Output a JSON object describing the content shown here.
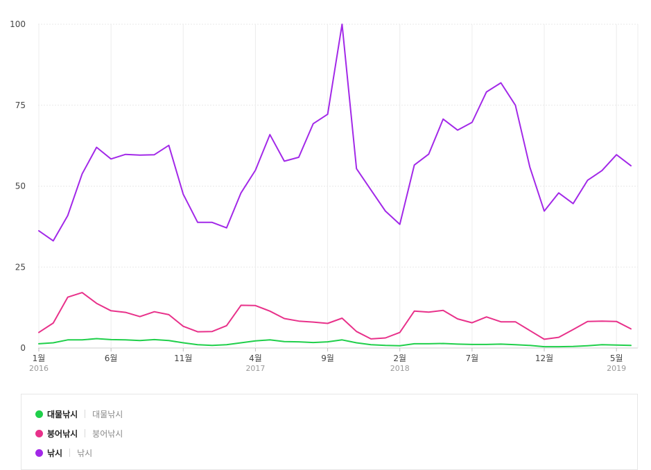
{
  "chart_data": {
    "type": "line",
    "ylim": [
      0,
      100
    ],
    "yticks": [
      "100",
      "75",
      "50",
      "25",
      "0"
    ],
    "ytick_values": [
      100,
      75,
      50,
      25,
      0
    ],
    "grid": true,
    "x_start": "2016-01",
    "x_end": "2019-06",
    "x_ticks": [
      {
        "month": "2016-01",
        "label": "1월",
        "year": "2016"
      },
      {
        "month": "2016-06",
        "label": "6월",
        "year": ""
      },
      {
        "month": "2016-11",
        "label": "11월",
        "year": ""
      },
      {
        "month": "2017-04",
        "label": "4월",
        "year": "2017"
      },
      {
        "month": "2017-09",
        "label": "9월",
        "year": ""
      },
      {
        "month": "2018-02",
        "label": "2월",
        "year": "2018"
      },
      {
        "month": "2018-07",
        "label": "7월",
        "year": ""
      },
      {
        "month": "2018-12",
        "label": "12월",
        "year": ""
      },
      {
        "month": "2019-05",
        "label": "5월",
        "year": "2019"
      }
    ],
    "series": [
      {
        "name": "대물낚시",
        "color": "#1fcf4a",
        "values": [
          1.3,
          1.6,
          2.5,
          2.5,
          2.9,
          2.6,
          2.5,
          2.3,
          2.6,
          2.3,
          1.6,
          1.0,
          0.8,
          1.0,
          1.6,
          2.2,
          2.5,
          2.0,
          1.9,
          1.7,
          1.9,
          2.5,
          1.6,
          1.0,
          0.8,
          0.7,
          1.3,
          1.3,
          1.4,
          1.2,
          1.1,
          1.1,
          1.2,
          1.0,
          0.8,
          0.4,
          0.4,
          0.5,
          0.7,
          1.0,
          0.9,
          0.8
        ]
      },
      {
        "name": "붕어낚시",
        "color": "#e8318a",
        "values": [
          4.8,
          7.7,
          15.7,
          17.1,
          13.8,
          11.5,
          11.0,
          9.7,
          11.2,
          10.3,
          6.7,
          5.0,
          5.1,
          6.9,
          13.2,
          13.1,
          11.4,
          9.1,
          8.3,
          8.0,
          7.6,
          9.2,
          5.1,
          2.8,
          3.1,
          4.8,
          11.4,
          11.1,
          11.6,
          9.0,
          7.8,
          9.6,
          8.1,
          8.1,
          5.4,
          2.7,
          3.3,
          5.7,
          8.2,
          8.3,
          8.2,
          5.9
        ]
      },
      {
        "name": "낚시",
        "color": "#a228e8",
        "values": [
          36.2,
          33.1,
          40.9,
          53.8,
          62.0,
          58.4,
          59.8,
          59.6,
          59.7,
          62.6,
          47.5,
          38.8,
          38.8,
          37.1,
          47.9,
          54.9,
          65.9,
          57.7,
          58.9,
          69.3,
          72.2,
          100,
          55.4,
          48.8,
          42.3,
          38.2,
          56.5,
          59.9,
          70.7,
          67.3,
          69.7,
          79.1,
          81.9,
          75.0,
          55.9,
          42.3,
          47.9,
          44.6,
          51.8,
          54.8,
          59.7,
          56.3
        ]
      }
    ]
  },
  "legend": [
    {
      "name": "대물낚시",
      "desc": "대물낚시",
      "color": "#1fcf4a"
    },
    {
      "name": "붕어낚시",
      "desc": "붕어낚시",
      "color": "#e8318a"
    },
    {
      "name": "낚시",
      "desc": "낚시",
      "color": "#a228e8"
    }
  ]
}
